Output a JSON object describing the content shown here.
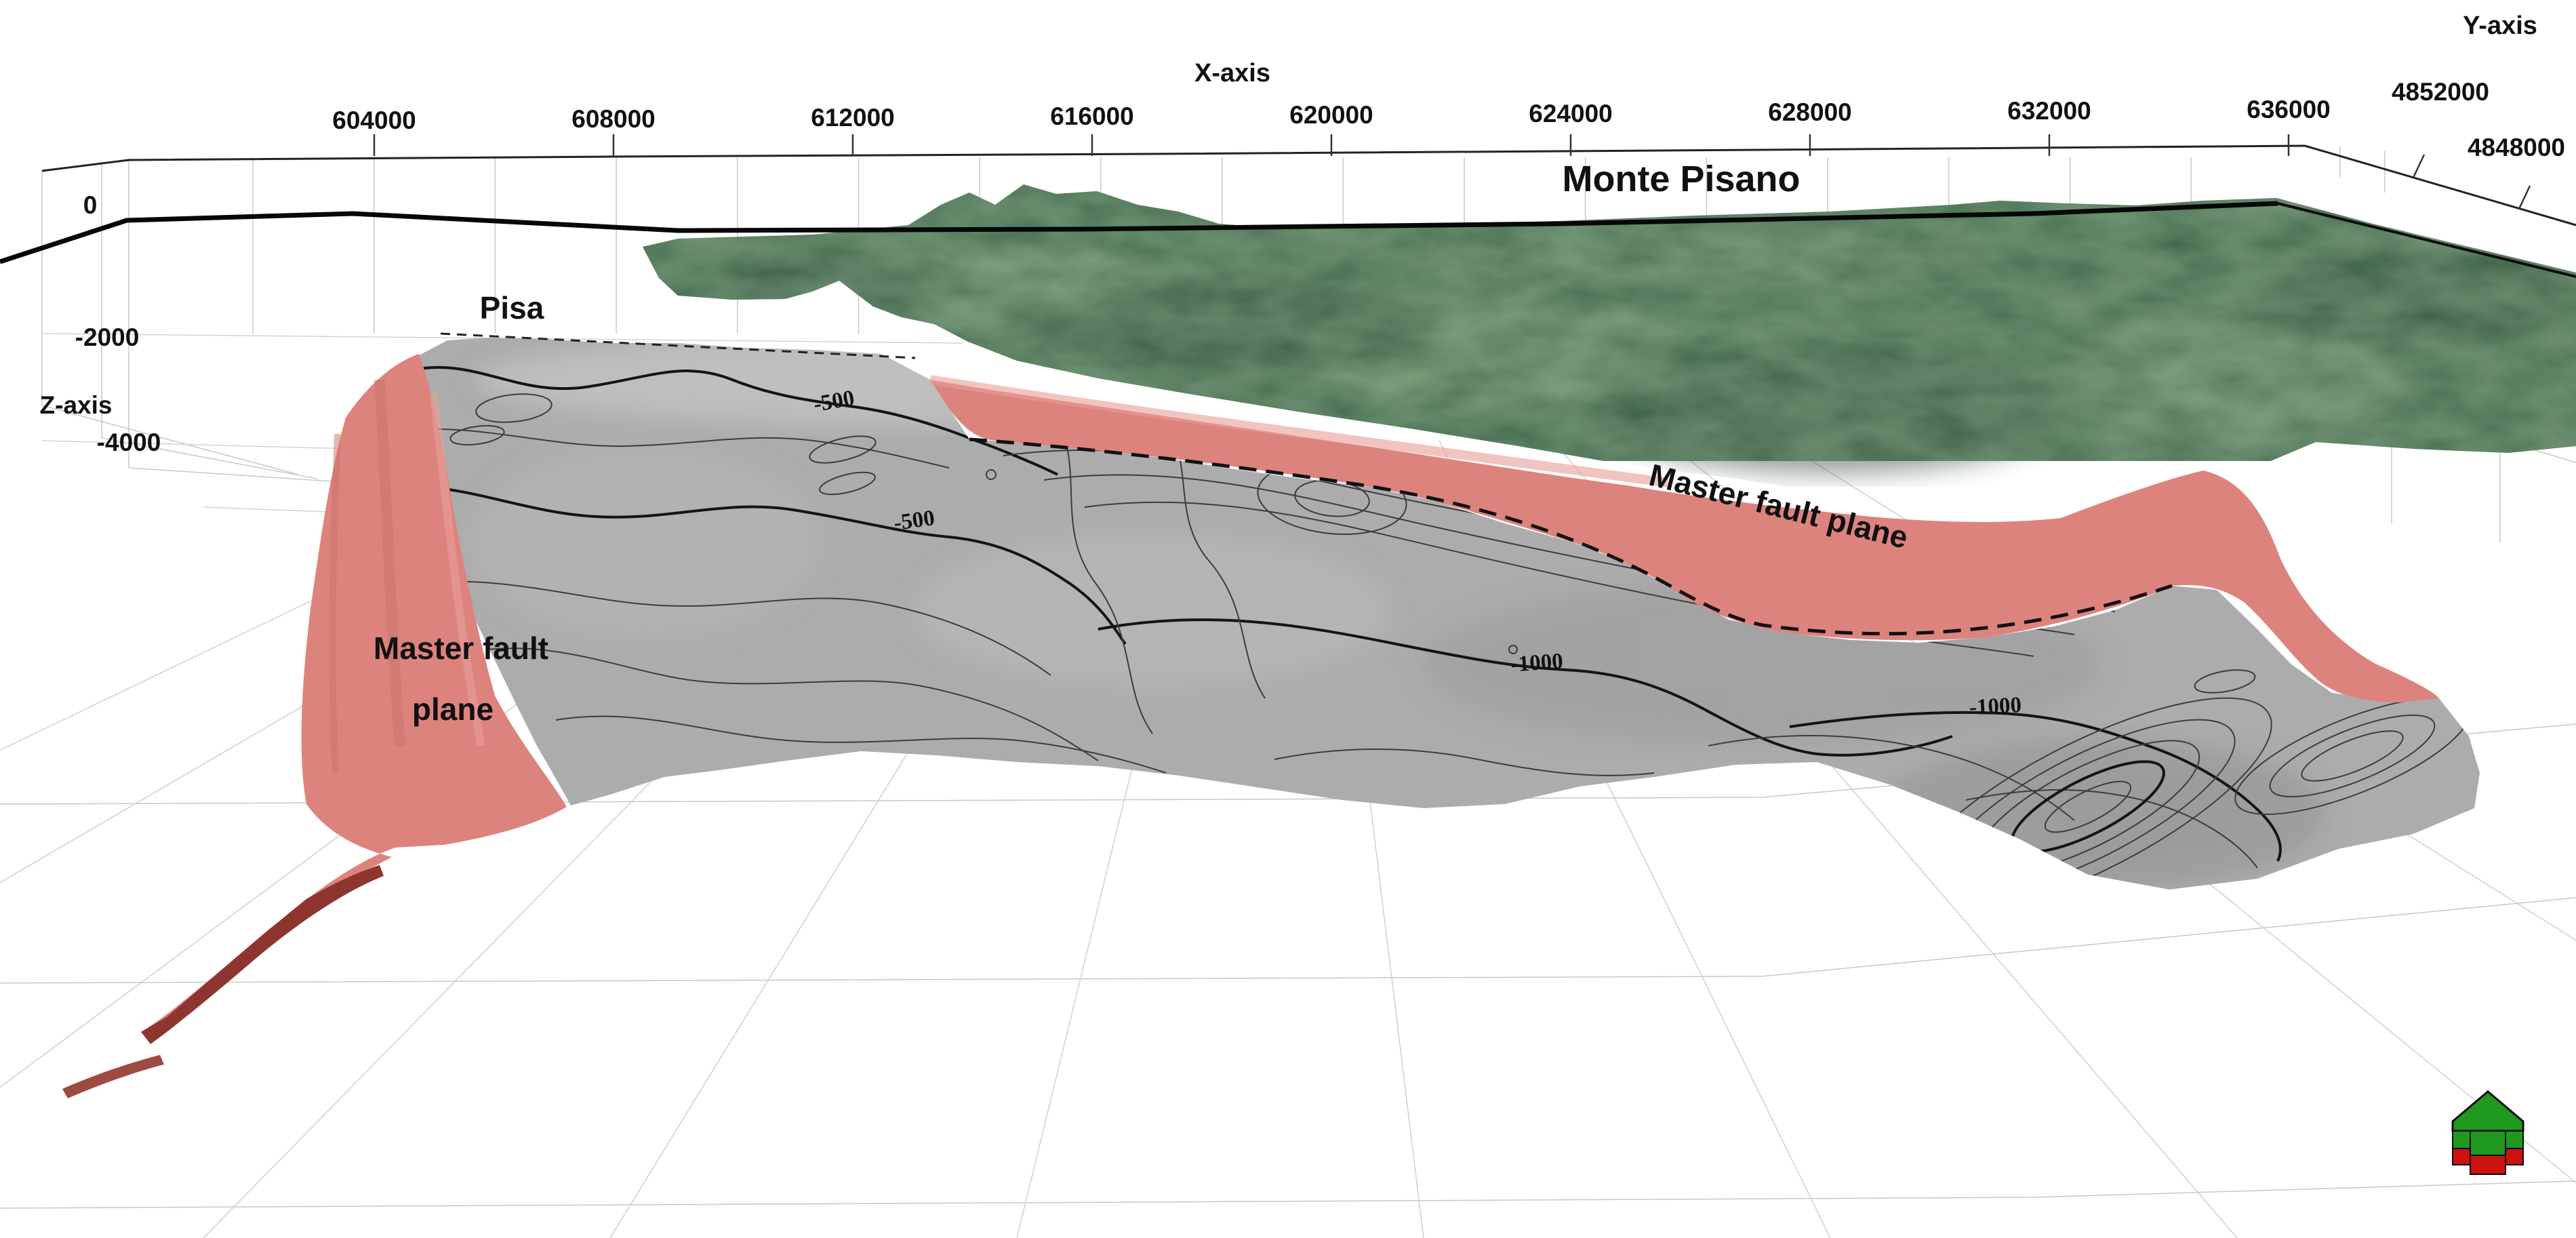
{
  "figure": {
    "axes": {
      "x": {
        "title": "X-axis",
        "ticks": [
          "604000",
          "608000",
          "612000",
          "616000",
          "620000",
          "624000",
          "628000",
          "632000",
          "636000"
        ]
      },
      "y": {
        "title": "Y-axis",
        "ticks": [
          "4852000",
          "4848000"
        ]
      },
      "z": {
        "title": "Z-axis",
        "ticks": [
          "0",
          "-2000",
          "-4000"
        ]
      }
    },
    "labels": {
      "city": "Pisa",
      "mountain": "Monte Pisano",
      "fault_right": "Master fault plane",
      "fault_left_line1": "Master fault",
      "fault_left_line2": "plane"
    },
    "contour_labels": [
      {
        "text": "-500"
      },
      {
        "text": "-500"
      },
      {
        "text": "-1000"
      },
      {
        "text": "-1000"
      }
    ],
    "colors": {
      "fault_plane": "#dd837e",
      "fault_plane_dark": "#8e3530",
      "terrain_green": "#3f5d46",
      "surface_gray": "#acacac",
      "icon_green": "#1f9a1f",
      "icon_red": "#cc1111",
      "grid": "#c9c9c9"
    }
  }
}
